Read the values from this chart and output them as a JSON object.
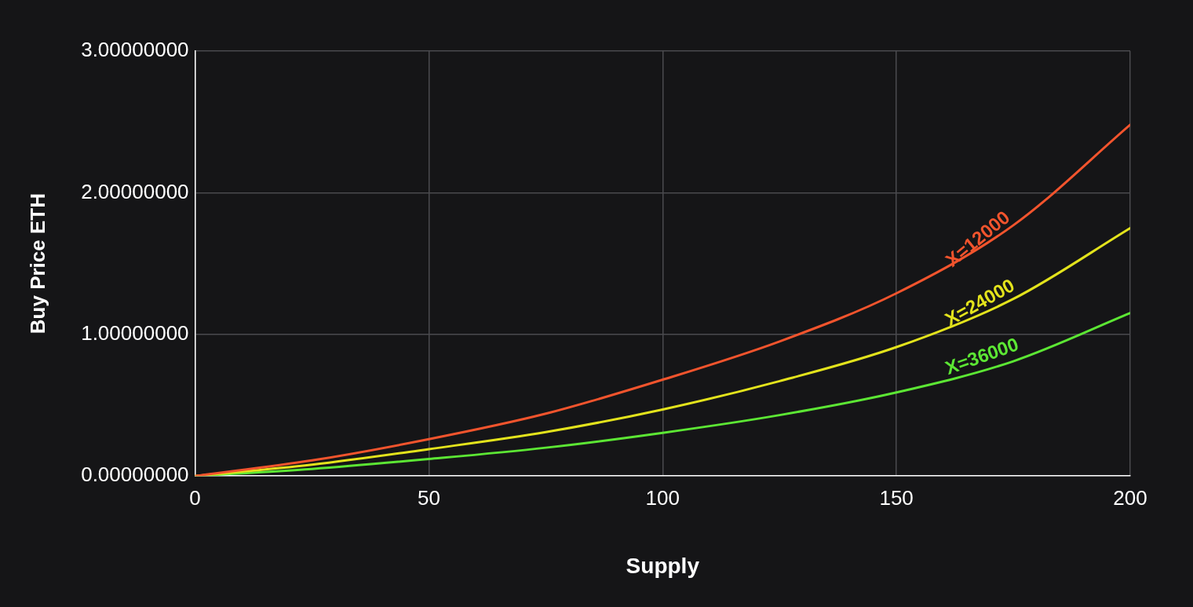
{
  "chart_data": {
    "type": "line",
    "xlabel": "Supply",
    "ylabel": "Buy Price ETH",
    "x": [
      0,
      25,
      50,
      75,
      100,
      125,
      150,
      175,
      200
    ],
    "series": [
      {
        "name": "X=12000",
        "color": "#f2542d",
        "values": [
          0,
          0.11,
          0.26,
          0.44,
          0.68,
          0.95,
          1.29,
          1.77,
          2.48
        ]
      },
      {
        "name": "X=24000",
        "color": "#e3e31c",
        "values": [
          0,
          0.08,
          0.19,
          0.31,
          0.47,
          0.67,
          0.91,
          1.25,
          1.75
        ]
      },
      {
        "name": "X=36000",
        "color": "#5ce634",
        "values": [
          0,
          0.05,
          0.12,
          0.2,
          0.305,
          0.43,
          0.59,
          0.81,
          1.15
        ]
      }
    ],
    "xlim": [
      0,
      200
    ],
    "xticks": [
      0,
      50,
      100,
      150,
      200
    ],
    "ylim": [
      0,
      3
    ],
    "yticks": [
      {
        "value": 0,
        "label": "0.00000000"
      },
      {
        "value": 1,
        "label": "1.00000000"
      },
      {
        "value": 2,
        "label": "2.00000000"
      },
      {
        "value": 3,
        "label": "3.00000000"
      }
    ],
    "grid": true,
    "legend": false,
    "marker": "none",
    "line_style": "solid"
  }
}
